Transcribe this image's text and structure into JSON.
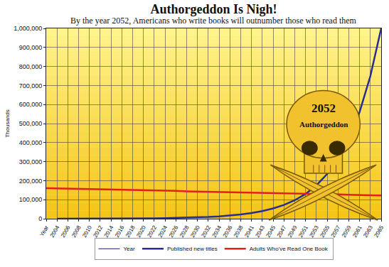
{
  "chart_data": {
    "type": "line",
    "title": "Authorgeddon Is Nigh!",
    "subtitle": "By the year 2052, Americans who write books will outnumber those who read them",
    "y_label": "Thousands",
    "categories": [
      "Year",
      "2004",
      "2006",
      "2008",
      "2010",
      "2012",
      "2014",
      "2016",
      "2018",
      "2020",
      "2022",
      "2024",
      "2026",
      "2028",
      "2030",
      "2032",
      "2034",
      "2036",
      "2038",
      "2041",
      "2043",
      "2045",
      "2047",
      "2049",
      "2051",
      "2053",
      "2055",
      "2057",
      "2059",
      "2061",
      "2063",
      "2065"
    ],
    "series": [
      {
        "name": "Year",
        "color": "#1c1c6b",
        "values": [
          null,
          null,
          null,
          null,
          null,
          null,
          null,
          null,
          null,
          null,
          null,
          null,
          null,
          null,
          null,
          null,
          null,
          null,
          null,
          null,
          null,
          null,
          null,
          null,
          null,
          null,
          null,
          null,
          null,
          null,
          null,
          null
        ]
      },
      {
        "name": "Published new titles",
        "color": "#2b2c8f",
        "values": [
          null,
          0,
          0,
          0,
          0,
          500,
          500,
          1000,
          1000,
          1500,
          2000,
          3000,
          4000,
          5000,
          7000,
          9000,
          12000,
          16000,
          22000,
          30000,
          40000,
          54000,
          72000,
          97000,
          130000,
          175000,
          235000,
          315000,
          420000,
          560000,
          750000,
          1000000
        ]
      },
      {
        "name": "Adults Who've Read One Book",
        "color": "#e3201b",
        "values": [
          160000,
          159000,
          158000,
          156000,
          155000,
          154000,
          153000,
          152000,
          150000,
          149000,
          148000,
          147000,
          146000,
          144000,
          143000,
          142000,
          141000,
          140000,
          138000,
          137000,
          136000,
          135000,
          134000,
          132000,
          131000,
          130000,
          129000,
          128000,
          126000,
          125000,
          124000,
          122000
        ]
      }
    ],
    "ylim": [
      0,
      1000000
    ],
    "yticks": [
      0,
      {
        "value": 100000,
        "label": "100,000"
      },
      {
        "value": 200000,
        "label": "200,000"
      },
      {
        "value": 300000,
        "label": "300,000"
      },
      {
        "value": 400000,
        "label": "400,000"
      },
      {
        "value": 500000,
        "label": "500,000"
      },
      {
        "value": 600000,
        "label": "600,000"
      },
      {
        "value": 700000,
        "label": "700,000"
      },
      {
        "value": 800000,
        "label": "800,000"
      },
      {
        "value": 900000,
        "label": "900,000"
      },
      {
        "value": 1000000,
        "label": "1,000,000"
      }
    ],
    "grid": true,
    "legend": "bottom",
    "annotations": [
      {
        "text": "2052"
      },
      {
        "text": "Authorgeddon"
      }
    ]
  }
}
